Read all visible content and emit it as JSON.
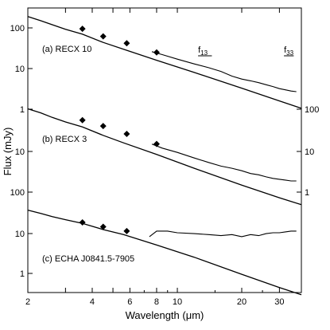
{
  "chart_data": {
    "type": "line",
    "xlabel": "Wavelength (μm)",
    "ylabel": "Flux (mJy)",
    "x_scale": "log",
    "y_scale": "log",
    "xlim": [
      2,
      38
    ],
    "x_ticks": [
      2,
      3,
      4,
      5,
      6,
      8,
      10,
      20,
      30
    ],
    "x_tick_labels": [
      "2",
      "4",
      "6",
      "8",
      "10",
      "20",
      "30"
    ],
    "left_y_ticks": [
      "100",
      "10",
      "1",
      "100",
      "10",
      "1",
      "100",
      "10",
      "1"
    ],
    "right_y_ticks": [
      "100",
      "10",
      "1"
    ],
    "feature_labels": [
      "f13",
      "f33"
    ],
    "feature_marks": [
      {
        "text": "f",
        "sub": "13",
        "x_range": [
          12.5,
          14.5
        ]
      },
      {
        "text": "f",
        "sub": "33",
        "x_range": [
          31.5,
          35.0
        ]
      }
    ],
    "panels": [
      {
        "label": "(a)  RECX 10",
        "photosphere": {
          "x": [
            2,
            2.3,
            2.6,
            3,
            3.6,
            4.5,
            5.6,
            8,
            12,
            20,
            30,
            38
          ],
          "y": [
            190,
            150,
            120,
            92,
            70,
            44,
            30,
            16,
            8,
            3.3,
            1.6,
            1.05
          ]
        },
        "photometry": {
          "x": [
            3.6,
            4.5,
            5.8,
            8.0
          ],
          "y": [
            95,
            62,
            42,
            25
          ]
        },
        "spectrum": {
          "x": [
            7.6,
            8.5,
            10,
            12,
            14,
            16,
            18,
            20,
            22,
            24,
            26,
            28,
            30,
            32,
            34,
            36
          ],
          "y": [
            26,
            22,
            17,
            13,
            10.5,
            8.5,
            6.5,
            5.5,
            5,
            4.5,
            4.0,
            3.6,
            3.2,
            3.0,
            2.8,
            2.7
          ]
        }
      },
      {
        "label": "(b)  RECX 3",
        "photosphere": {
          "x": [
            2,
            2.3,
            2.6,
            3,
            3.6,
            4.5,
            5.6,
            8,
            12,
            20,
            30,
            38
          ],
          "y": [
            1.02,
            0.82,
            0.64,
            0.5,
            0.38,
            0.24,
            0.16,
            0.085,
            0.04,
            0.016,
            0.008,
            0.0055
          ]
        },
        "photometry": {
          "x": [
            3.6,
            4.5,
            5.8,
            8.0
          ],
          "y": [
            0.55,
            0.4,
            0.26,
            0.15
          ]
        },
        "spectrum": {
          "x": [
            7.6,
            8.5,
            10,
            12,
            14,
            16,
            18,
            20,
            22,
            24,
            26,
            28,
            30,
            32,
            34,
            36
          ],
          "y": [
            0.15,
            0.12,
            0.095,
            0.07,
            0.055,
            0.045,
            0.04,
            0.035,
            0.03,
            0.028,
            0.025,
            0.023,
            0.022,
            0.021,
            0.02,
            0.02
          ]
        }
      },
      {
        "label": "(c)  ECHA J0841.5-7905",
        "photosphere": {
          "x": [
            2,
            2.3,
            2.6,
            3,
            3.6,
            4.5,
            5.6,
            8,
            12,
            20,
            30,
            38
          ],
          "y": [
            36,
            30,
            25,
            21,
            17,
            12,
            9,
            5,
            2.5,
            0.95,
            0.45,
            0.3
          ]
        },
        "photometry": {
          "x": [
            3.6,
            4.5,
            5.8
          ],
          "y": [
            18,
            14,
            11
          ]
        },
        "spectrum": {
          "x": [
            7.4,
            8,
            9,
            10,
            12,
            14,
            16,
            18,
            20,
            22,
            24,
            26,
            28,
            30,
            32,
            34,
            36
          ],
          "y": [
            8,
            11,
            11,
            10,
            9.5,
            9,
            8.5,
            9,
            8,
            9,
            8.5,
            9.5,
            10,
            10,
            10.5,
            11,
            11
          ]
        }
      }
    ]
  }
}
